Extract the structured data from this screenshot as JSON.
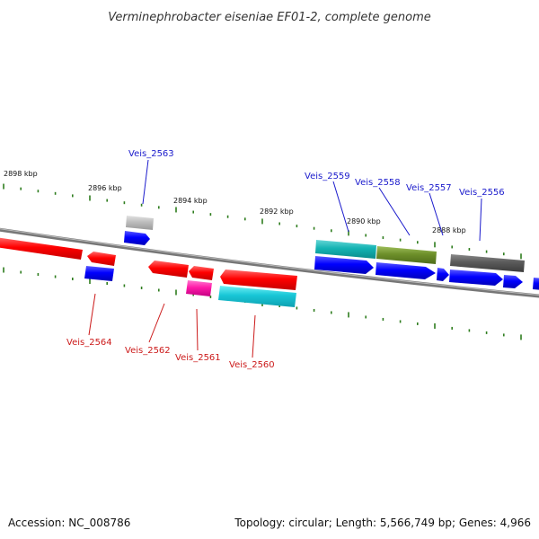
{
  "title": "Verminephrobacter eiseniae EF01-2, complete genome",
  "footer": {
    "accession": "Accession: NC_008786",
    "summary": "Topology: circular; Length: 5,566,749 bp; Genes: 4,966"
  },
  "colors": {
    "forward_label": "#1a1acc",
    "reverse_label": "#cc1a1a",
    "backbone": "#888888",
    "tick": "#2e7d1e"
  },
  "ticks": [
    {
      "label": "2898 kbp"
    },
    {
      "label": "2896 kbp"
    },
    {
      "label": "2894 kbp"
    },
    {
      "label": "2892 kbp"
    },
    {
      "label": "2890 kbp"
    },
    {
      "label": "2888 kbp"
    }
  ],
  "gene_labels": [
    {
      "id": "Veis_2563",
      "strand": "forward"
    },
    {
      "id": "Veis_2559",
      "strand": "forward"
    },
    {
      "id": "Veis_2558",
      "strand": "forward"
    },
    {
      "id": "Veis_2557",
      "strand": "forward"
    },
    {
      "id": "Veis_2556",
      "strand": "forward"
    },
    {
      "id": "Veis_2564",
      "strand": "reverse"
    },
    {
      "id": "Veis_2562",
      "strand": "reverse"
    },
    {
      "id": "Veis_2561",
      "strand": "reverse"
    },
    {
      "id": "Veis_2560",
      "strand": "reverse"
    }
  ]
}
